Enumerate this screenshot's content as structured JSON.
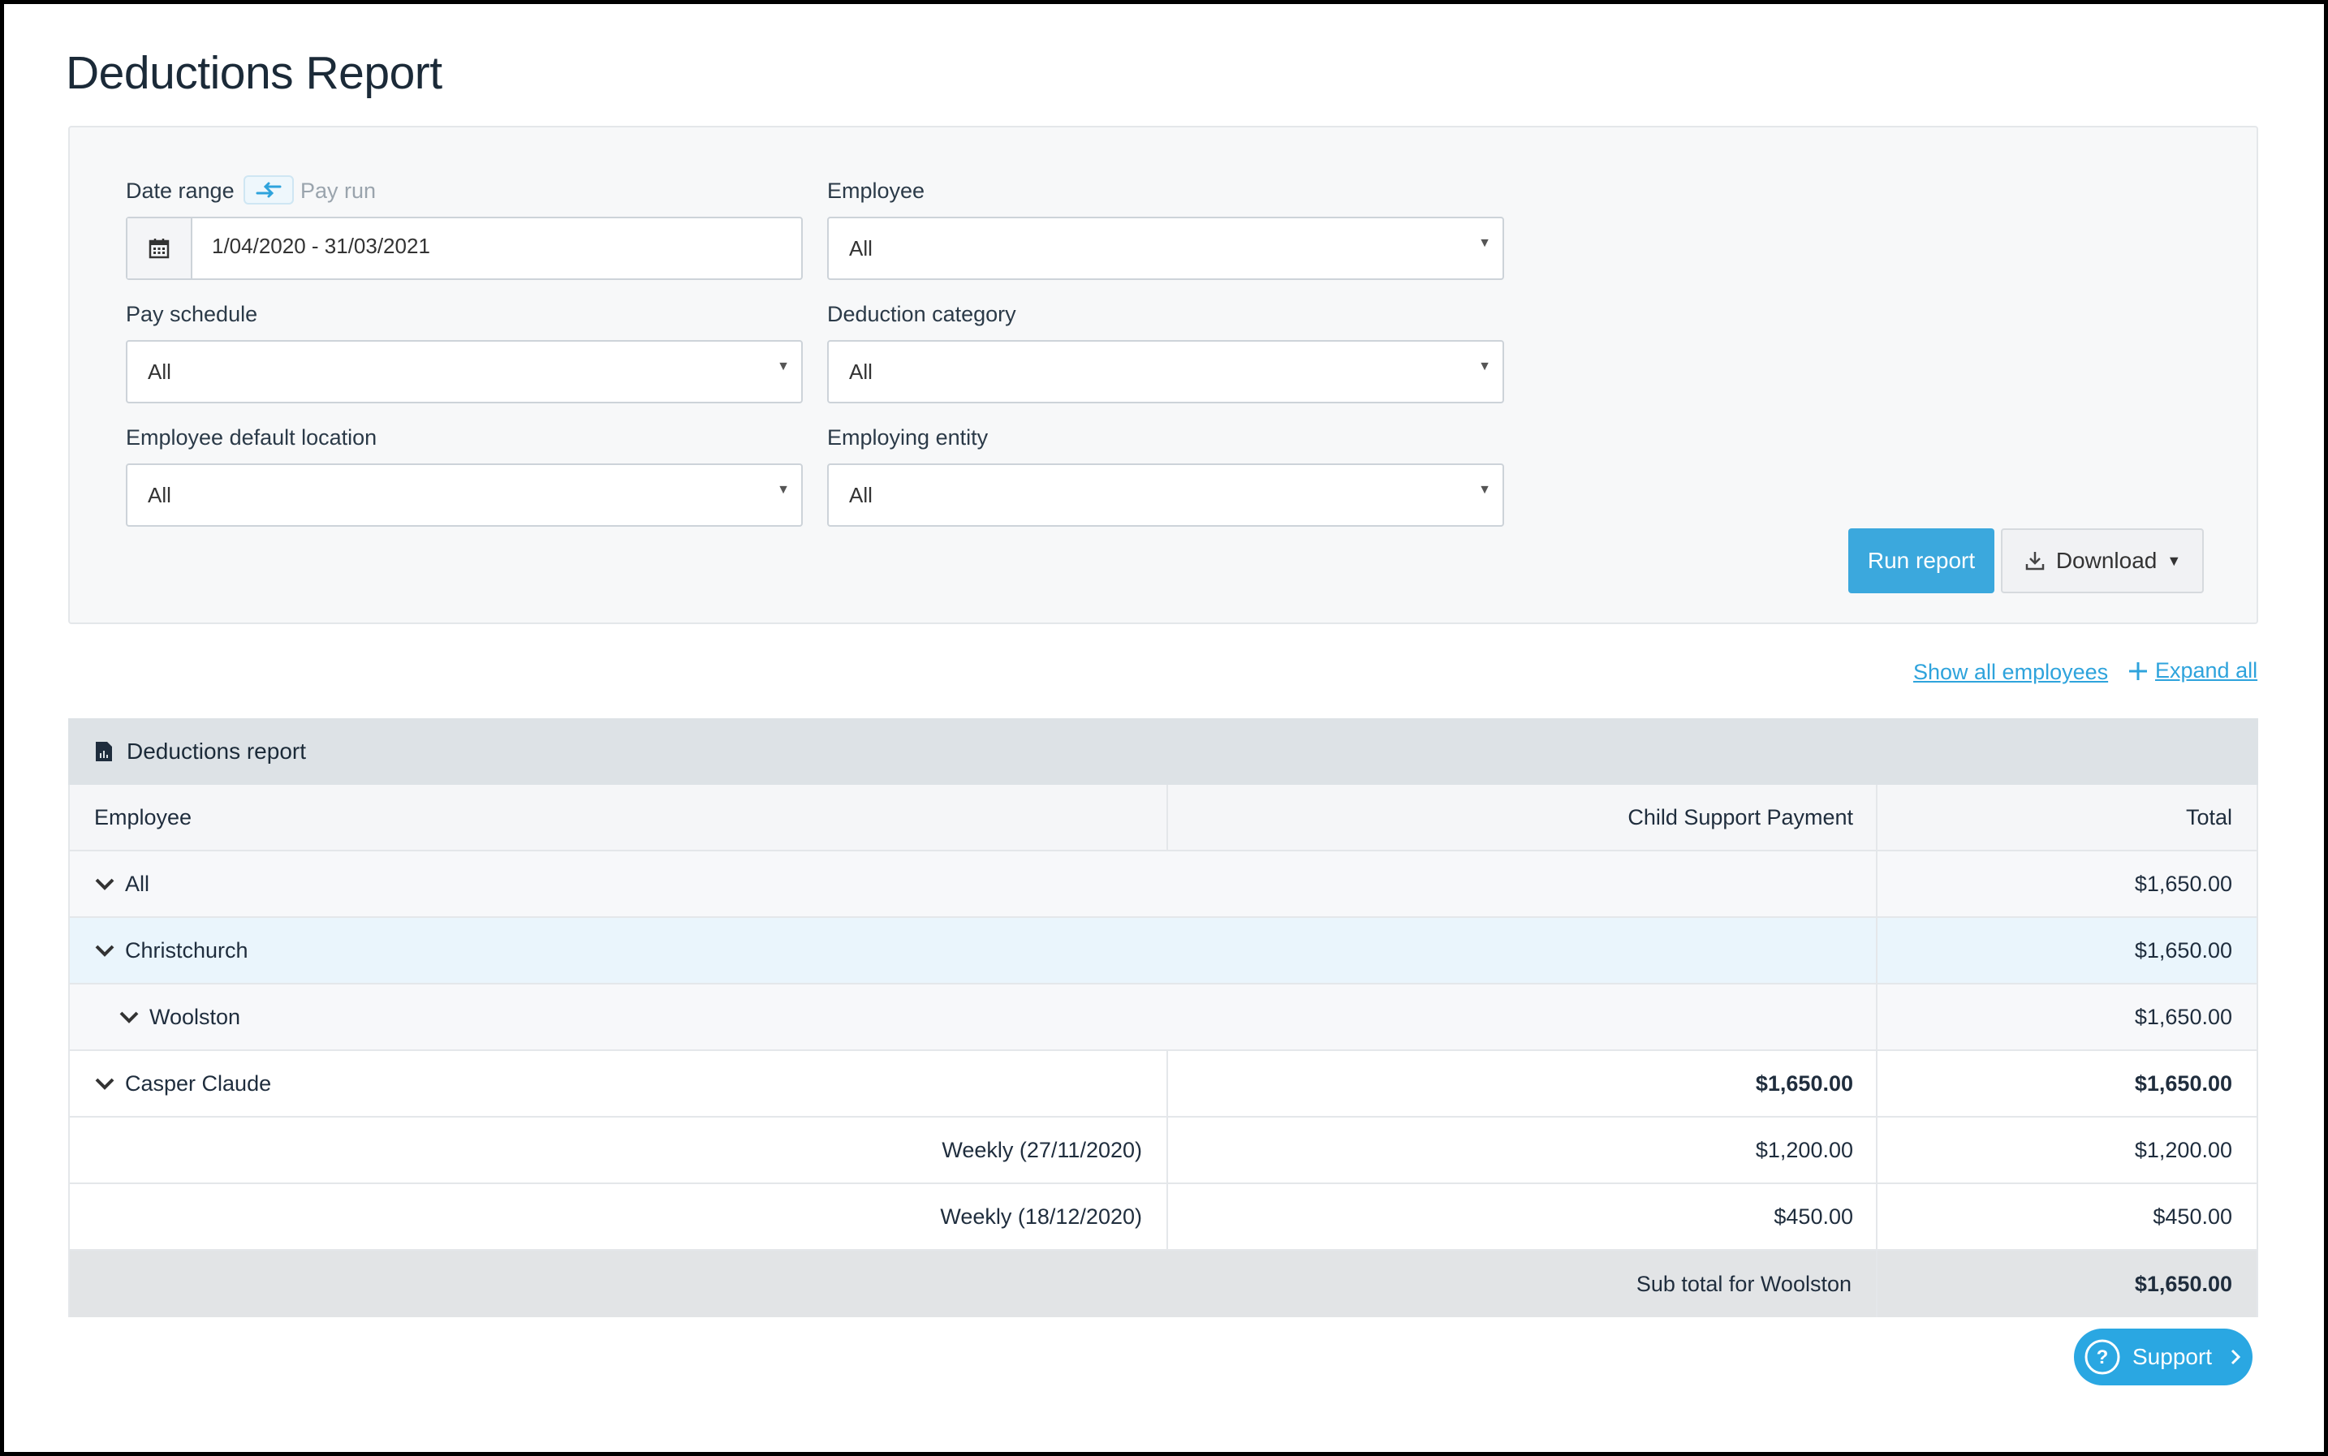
{
  "page": {
    "title": "Deductions Report"
  },
  "filters": {
    "date_range_label": "Date range",
    "pay_run_label": "Pay run",
    "date_value": "1/04/2020 - 31/03/2021",
    "employee_label": "Employee",
    "employee_value": "All",
    "pay_schedule_label": "Pay schedule",
    "pay_schedule_value": "All",
    "deduction_category_label": "Deduction category",
    "deduction_category_value": "All",
    "location_label": "Employee default location",
    "location_value": "All",
    "entity_label": "Employing entity",
    "entity_value": "All"
  },
  "actions": {
    "run_report": "Run report",
    "download": "Download"
  },
  "links": {
    "show_all_employees": "Show all employees",
    "expand_all": "Expand all"
  },
  "report": {
    "title": "Deductions report",
    "columns": [
      "Employee",
      "Child Support Payment",
      "Total"
    ],
    "rows": [
      {
        "label": "All",
        "total": "$1,650.00"
      },
      {
        "label": "Christchurch",
        "total": "$1,650.00"
      },
      {
        "label": "Woolston",
        "total": "$1,650.00"
      },
      {
        "label": "Casper Claude",
        "child_support": "$1,650.00",
        "total": "$1,650.00"
      },
      {
        "label": "Weekly (27/11/2020)",
        "child_support": "$1,200.00",
        "total": "$1,200.00"
      },
      {
        "label": "Weekly (18/12/2020)",
        "child_support": "$450.00",
        "total": "$450.00"
      }
    ],
    "subtotal_label": "Sub total for Woolston",
    "subtotal_value": "$1,650.00"
  },
  "support": {
    "label": "Support"
  },
  "colors": {
    "accent": "#3ba8dd",
    "link": "#2ea3dc",
    "highlight_row": "#eaf5fc"
  }
}
